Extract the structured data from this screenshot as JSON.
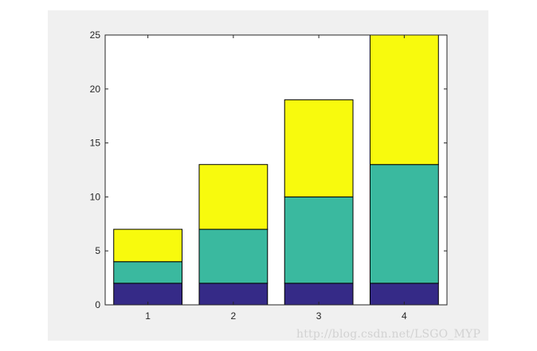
{
  "chart_data": {
    "type": "bar",
    "stacked": true,
    "categories": [
      "1",
      "2",
      "3",
      "4"
    ],
    "series": [
      {
        "values": [
          2,
          2,
          2,
          2
        ],
        "color": "#352a87"
      },
      {
        "values": [
          2,
          5,
          8,
          11
        ],
        "color": "#3ab99f"
      },
      {
        "values": [
          3,
          6,
          9,
          12
        ],
        "color": "#f8fa0d"
      }
    ],
    "title": "",
    "xlabel": "",
    "ylabel": "",
    "ylim": [
      0,
      25
    ],
    "yticks": [
      "0",
      "5",
      "10",
      "15",
      "20",
      "25"
    ],
    "grid": false,
    "colors": {
      "figure_background": "#f0f0f0",
      "axes_background": "#ffffff",
      "edge": "#000000"
    }
  },
  "watermark": "http://blog.csdn.net/LSGO_MYP"
}
